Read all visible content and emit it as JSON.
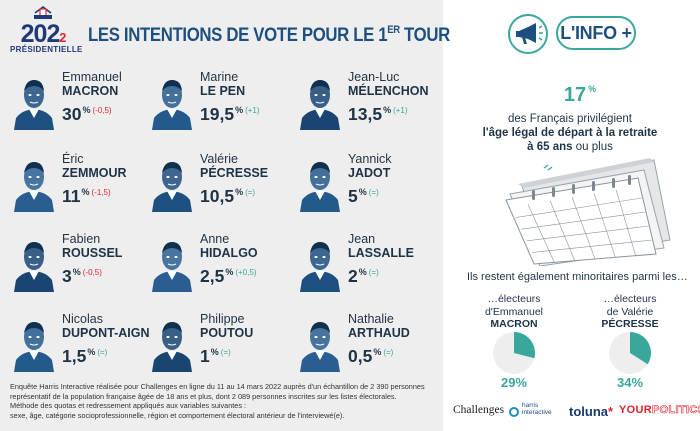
{
  "logo": {
    "year_main": "202",
    "year_last": "2",
    "subtitle": "PRÉSIDENTIELLE"
  },
  "title": {
    "text": "LES INTENTIONS DE VOTE POUR LE 1",
    "ordinal": "ER",
    "suffix": " TOUR"
  },
  "candidates": [
    {
      "first": "Emmanuel",
      "last": "MACRON",
      "score": "30",
      "delta": "(-0,5)",
      "trend": "neg"
    },
    {
      "first": "Marine",
      "last": "LE PEN",
      "score": "19,5",
      "delta": "(+1)",
      "trend": "pos"
    },
    {
      "first": "Jean-Luc",
      "last": "MÉLENCHON",
      "score": "13,5",
      "delta": "(+1)",
      "trend": "pos"
    },
    {
      "first": "Éric",
      "last": "ZEMMOUR",
      "score": "11",
      "delta": "(-1,5)",
      "trend": "neg"
    },
    {
      "first": "Valérie",
      "last": "PÉCRESSE",
      "score": "10,5",
      "delta": "(=)",
      "trend": "eq"
    },
    {
      "first": "Yannick",
      "last": "JADOT",
      "score": "5",
      "delta": "(=)",
      "trend": "eq"
    },
    {
      "first": "Fabien",
      "last": "ROUSSEL",
      "score": "3",
      "delta": "(-0,5)",
      "trend": "neg"
    },
    {
      "first": "Anne",
      "last": "HIDALGO",
      "score": "2,5",
      "delta": "(+0,5)",
      "trend": "pos"
    },
    {
      "first": "Jean",
      "last": "LASSALLE",
      "score": "2",
      "delta": "(=)",
      "trend": "eq"
    },
    {
      "first": "Nicolas",
      "last": "DUPONT-AIGNAN",
      "score": "1,5",
      "delta": "(=)",
      "trend": "eq"
    },
    {
      "first": "Philippe",
      "last": "POUTOU",
      "score": "1",
      "delta": "(=)",
      "trend": "eq"
    },
    {
      "first": "Nathalie",
      "last": "ARTHAUD",
      "score": "0,5",
      "delta": "(=)",
      "trend": "eq"
    }
  ],
  "pct_sign": "%",
  "source": {
    "line1": "Enquête Harris Interactive réalisée pour Challenges en ligne du 11 au 14 mars 2022 auprès d'un échantillon de 2 390 personnes",
    "line2": "représentatif de la population française âgée de 18 ans et plus, dont 2 089 personnes inscrites sur les listes électorales.",
    "line3": "Méthode des quotas et redressement appliqués aux variables suivantes :",
    "line4": "sexe, âge, catégorie socioprofessionnelle, région et comportement électoral antérieur de l'interviewé(e)."
  },
  "info": {
    "title": "L'INFO +",
    "stat_value": "17",
    "stat_pct": "%",
    "line1": "des Français privilégient",
    "line2": "l'âge légal de départ à la retraite",
    "line3_bold": "à 65 ans",
    "line3_rest": " ou plus",
    "minor_text": "Ils restent également minoritaires parmi les…",
    "sub1_l1": "…électeurs",
    "sub1_l2": "d'Emmanuel",
    "sub1_l3": "MACRON",
    "sub1_value": "29%",
    "sub2_l1": "…électeurs",
    "sub2_l2": "de Valérie",
    "sub2_l3": "PÉCRESSE",
    "sub2_value": "34%"
  },
  "pies": [
    {
      "fraction": 0.29,
      "color": "#3aa79d",
      "bg": "#eeeeee"
    },
    {
      "fraction": 0.34,
      "color": "#3aa79d",
      "bg": "#eeeeee"
    }
  ],
  "brands": {
    "challenges": "Challenges",
    "harris_1": "harris",
    "harris_2": "interactive",
    "toluna": "toluna",
    "toluna_mark": "*",
    "your": "YOUR",
    "politics": "POLITICS"
  },
  "colors": {
    "accent_teal": "#3aa79d",
    "title_blue": "#1d4f80",
    "negative_red": "#e1232f",
    "panel_grey": "#eeeeee"
  }
}
